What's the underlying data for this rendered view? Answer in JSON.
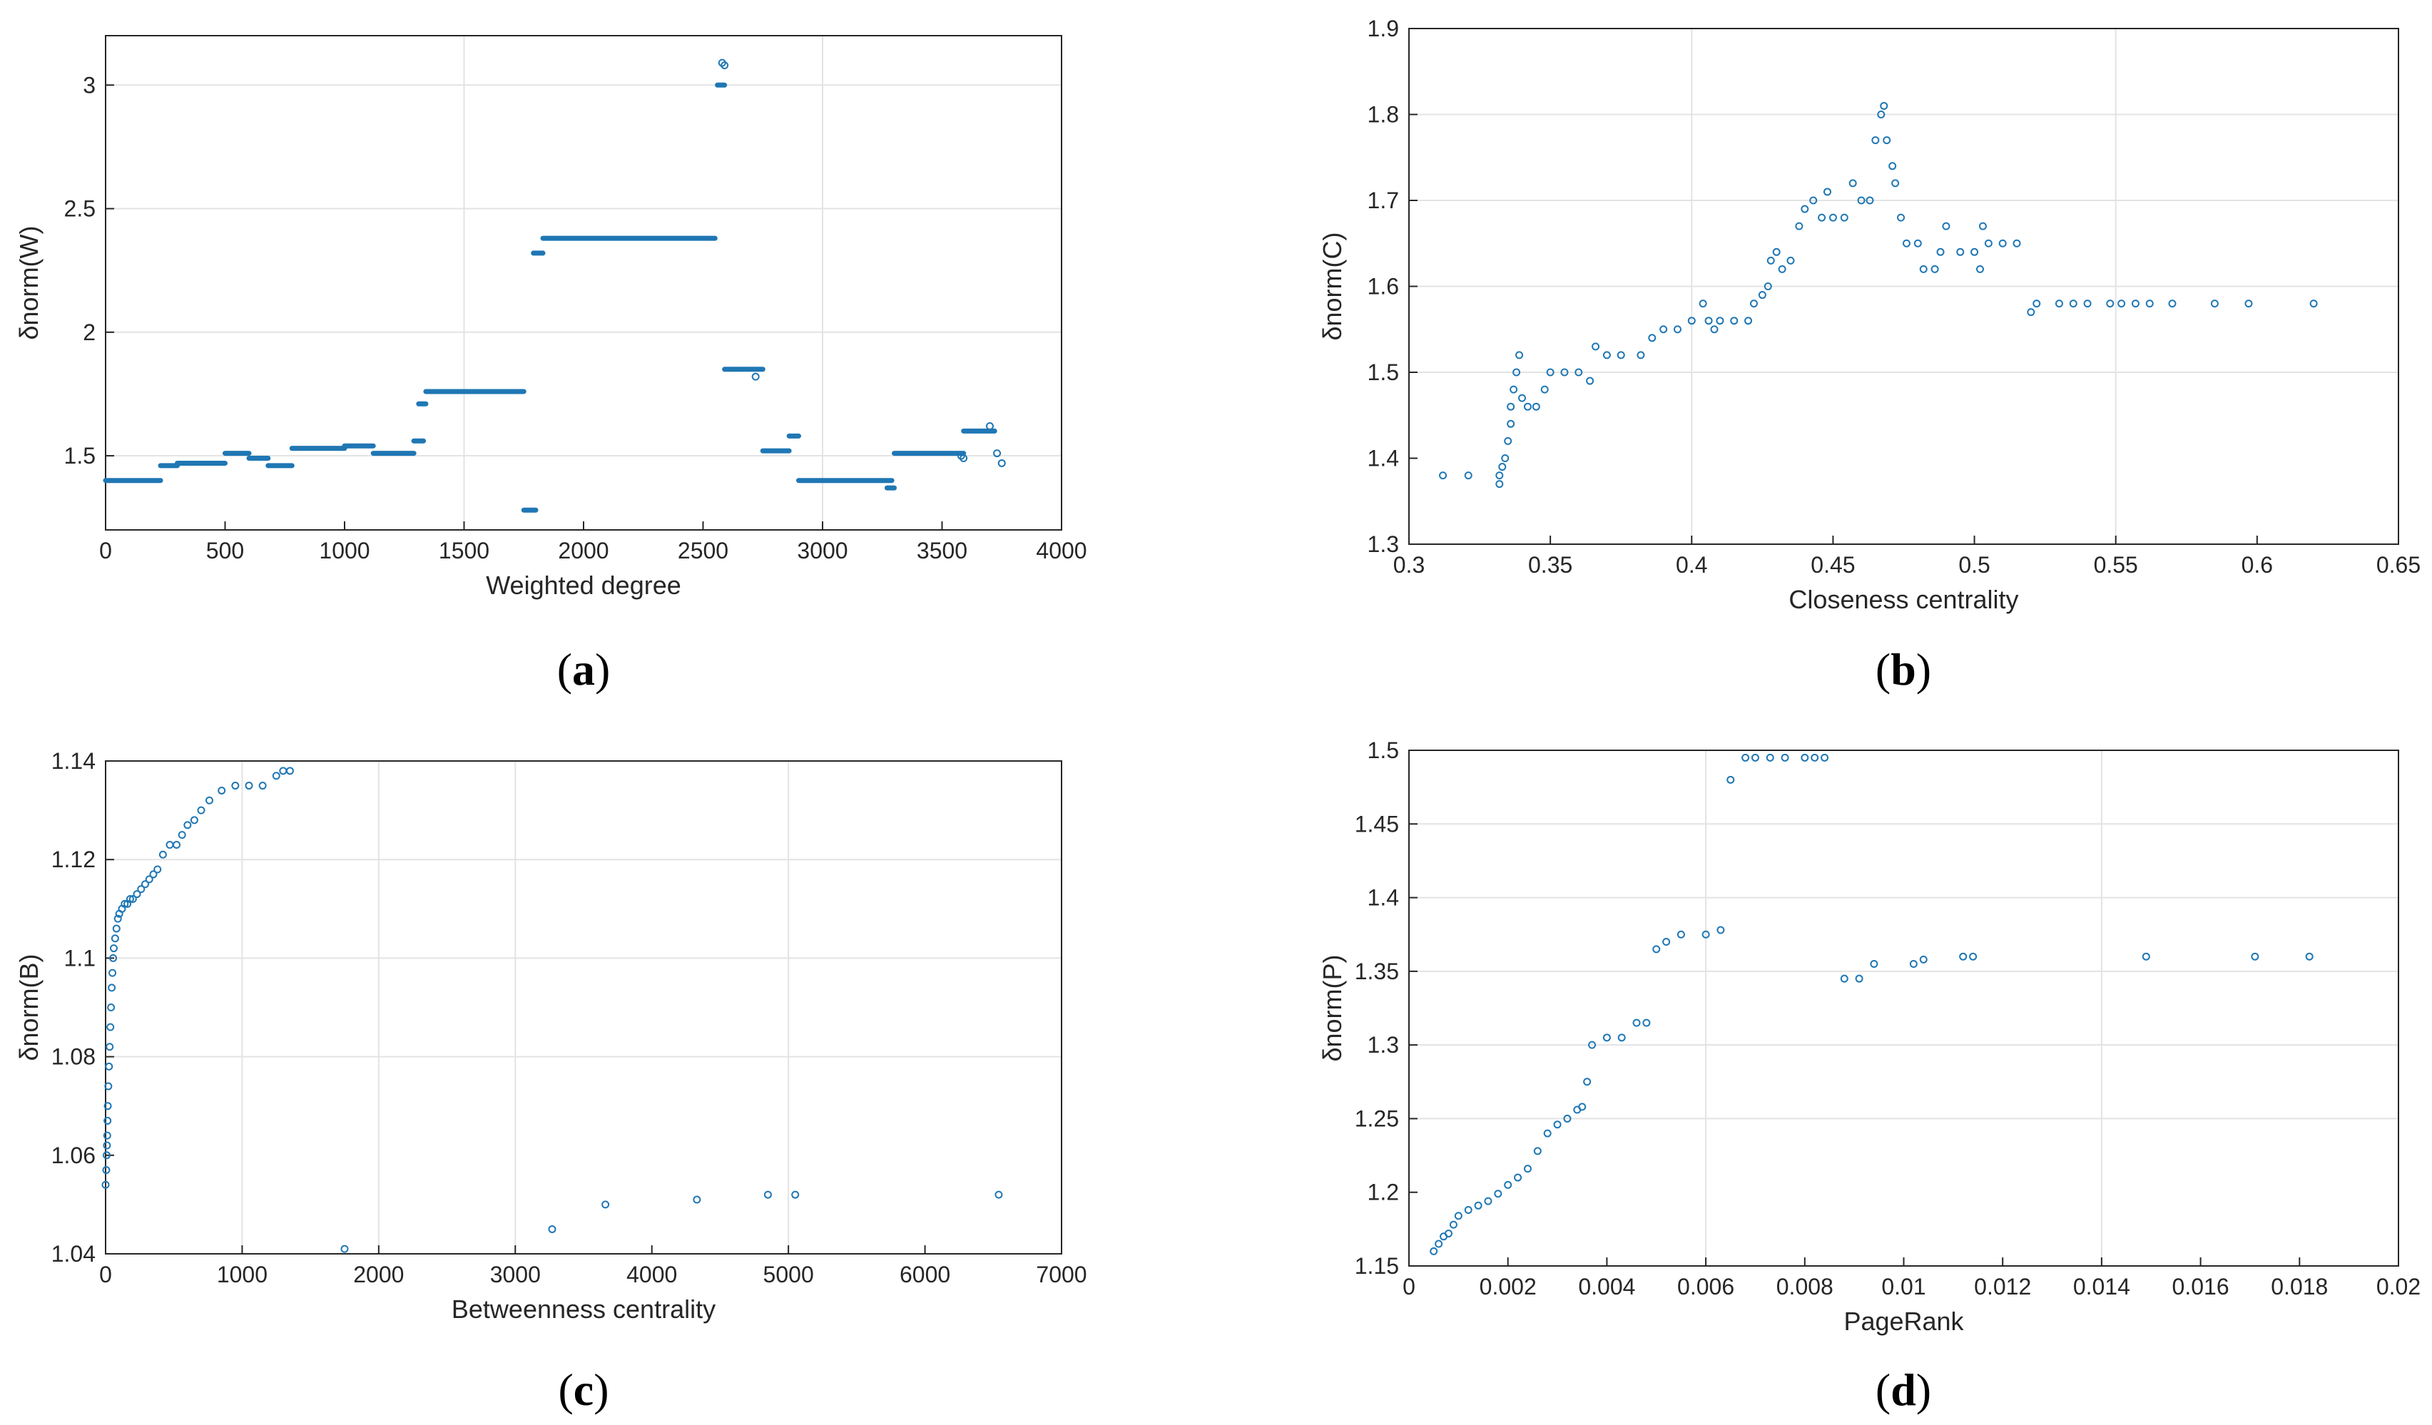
{
  "chart_data": [
    {
      "type": "scatter",
      "caption_letter": "a",
      "xlabel": "Weighted degree",
      "ylabel": "δnorm(W)",
      "xlim": [
        0,
        4000
      ],
      "ylim": [
        1.2,
        3.2
      ],
      "xticks": [
        0,
        500,
        1000,
        1500,
        2000,
        2500,
        3000,
        3500,
        4000
      ],
      "yticks": [
        1.5,
        2,
        2.5,
        3
      ],
      "xgrid": [
        1500,
        3000
      ],
      "ygrid": [
        1.5,
        2,
        2.5,
        3
      ],
      "marker_color": "#1f77b4",
      "segments": [
        {
          "x0": 0,
          "x1": 230,
          "y": 1.4
        },
        {
          "x0": 230,
          "x1": 300,
          "y": 1.46
        },
        {
          "x0": 300,
          "x1": 500,
          "y": 1.47
        },
        {
          "x0": 500,
          "x1": 600,
          "y": 1.51
        },
        {
          "x0": 600,
          "x1": 680,
          "y": 1.49
        },
        {
          "x0": 680,
          "x1": 780,
          "y": 1.46
        },
        {
          "x0": 780,
          "x1": 1000,
          "y": 1.53
        },
        {
          "x0": 1000,
          "x1": 1120,
          "y": 1.54
        },
        {
          "x0": 1120,
          "x1": 1290,
          "y": 1.51
        },
        {
          "x0": 1290,
          "x1": 1330,
          "y": 1.56
        },
        {
          "x0": 1310,
          "x1": 1340,
          "y": 1.71
        },
        {
          "x0": 1340,
          "x1": 1750,
          "y": 1.76
        },
        {
          "x0": 1750,
          "x1": 1800,
          "y": 1.28
        },
        {
          "x0": 1790,
          "x1": 1830,
          "y": 2.32
        },
        {
          "x0": 1830,
          "x1": 2550,
          "y": 2.38
        },
        {
          "x0": 2560,
          "x1": 2590,
          "y": 3.0
        },
        {
          "x0": 2590,
          "x1": 2750,
          "y": 1.85
        },
        {
          "x0": 2750,
          "x1": 2860,
          "y": 1.52
        },
        {
          "x0": 2860,
          "x1": 2900,
          "y": 1.58
        },
        {
          "x0": 2900,
          "x1": 3290,
          "y": 1.4
        },
        {
          "x0": 3270,
          "x1": 3300,
          "y": 1.37
        },
        {
          "x0": 3300,
          "x1": 3590,
          "y": 1.51
        },
        {
          "x0": 3590,
          "x1": 3720,
          "y": 1.6
        }
      ],
      "points": [
        [
          2580,
          3.09
        ],
        [
          2590,
          3.08
        ],
        [
          2720,
          1.82
        ],
        [
          3730,
          1.51
        ],
        [
          3750,
          1.47
        ],
        [
          3700,
          1.62
        ],
        [
          3580,
          1.5
        ],
        [
          3590,
          1.49
        ]
      ]
    },
    {
      "type": "scatter",
      "caption_letter": "b",
      "xlabel": "Closeness centrality",
      "ylabel": "δnorm(C)",
      "xlim": [
        0.3,
        0.65
      ],
      "ylim": [
        1.3,
        1.9
      ],
      "xticks": [
        0.3,
        0.35,
        0.4,
        0.45,
        0.5,
        0.55,
        0.6,
        0.65
      ],
      "yticks": [
        1.3,
        1.4,
        1.5,
        1.6,
        1.7,
        1.8,
        1.9
      ],
      "xgrid": [
        0.4,
        0.55
      ],
      "ygrid": [
        1.5,
        1.6,
        1.7,
        1.8
      ],
      "marker_color": "#1f77b4",
      "points": [
        [
          0.312,
          1.38
        ],
        [
          0.321,
          1.38
        ],
        [
          0.332,
          1.37
        ],
        [
          0.332,
          1.38
        ],
        [
          0.333,
          1.39
        ],
        [
          0.334,
          1.4
        ],
        [
          0.335,
          1.42
        ],
        [
          0.336,
          1.44
        ],
        [
          0.336,
          1.46
        ],
        [
          0.337,
          1.48
        ],
        [
          0.338,
          1.5
        ],
        [
          0.339,
          1.52
        ],
        [
          0.34,
          1.47
        ],
        [
          0.342,
          1.46
        ],
        [
          0.345,
          1.46
        ],
        [
          0.348,
          1.48
        ],
        [
          0.35,
          1.5
        ],
        [
          0.355,
          1.5
        ],
        [
          0.36,
          1.5
        ],
        [
          0.364,
          1.49
        ],
        [
          0.366,
          1.53
        ],
        [
          0.37,
          1.52
        ],
        [
          0.375,
          1.52
        ],
        [
          0.382,
          1.52
        ],
        [
          0.386,
          1.54
        ],
        [
          0.39,
          1.55
        ],
        [
          0.395,
          1.55
        ],
        [
          0.4,
          1.56
        ],
        [
          0.404,
          1.58
        ],
        [
          0.406,
          1.56
        ],
        [
          0.408,
          1.55
        ],
        [
          0.41,
          1.56
        ],
        [
          0.415,
          1.56
        ],
        [
          0.42,
          1.56
        ],
        [
          0.422,
          1.58
        ],
        [
          0.425,
          1.59
        ],
        [
          0.427,
          1.6
        ],
        [
          0.428,
          1.63
        ],
        [
          0.43,
          1.64
        ],
        [
          0.432,
          1.62
        ],
        [
          0.435,
          1.63
        ],
        [
          0.438,
          1.67
        ],
        [
          0.44,
          1.69
        ],
        [
          0.443,
          1.7
        ],
        [
          0.446,
          1.68
        ],
        [
          0.448,
          1.71
        ],
        [
          0.45,
          1.68
        ],
        [
          0.454,
          1.68
        ],
        [
          0.457,
          1.72
        ],
        [
          0.46,
          1.7
        ],
        [
          0.463,
          1.7
        ],
        [
          0.465,
          1.77
        ],
        [
          0.467,
          1.8
        ],
        [
          0.468,
          1.81
        ],
        [
          0.469,
          1.77
        ],
        [
          0.471,
          1.74
        ],
        [
          0.472,
          1.72
        ],
        [
          0.474,
          1.68
        ],
        [
          0.476,
          1.65
        ],
        [
          0.48,
          1.65
        ],
        [
          0.482,
          1.62
        ],
        [
          0.486,
          1.62
        ],
        [
          0.488,
          1.64
        ],
        [
          0.49,
          1.67
        ],
        [
          0.495,
          1.64
        ],
        [
          0.5,
          1.64
        ],
        [
          0.502,
          1.62
        ],
        [
          0.503,
          1.67
        ],
        [
          0.505,
          1.65
        ],
        [
          0.51,
          1.65
        ],
        [
          0.515,
          1.65
        ],
        [
          0.52,
          1.57
        ],
        [
          0.522,
          1.58
        ],
        [
          0.53,
          1.58
        ],
        [
          0.535,
          1.58
        ],
        [
          0.54,
          1.58
        ],
        [
          0.548,
          1.58
        ],
        [
          0.552,
          1.58
        ],
        [
          0.557,
          1.58
        ],
        [
          0.562,
          1.58
        ],
        [
          0.57,
          1.58
        ],
        [
          0.585,
          1.58
        ],
        [
          0.597,
          1.58
        ],
        [
          0.62,
          1.58
        ]
      ]
    },
    {
      "type": "scatter",
      "caption_letter": "c",
      "xlabel": "Betweenness centrality",
      "ylabel": "δnorm(B)",
      "xlim": [
        0,
        7000
      ],
      "ylim": [
        1.04,
        1.14
      ],
      "xticks": [
        0,
        1000,
        2000,
        3000,
        4000,
        5000,
        6000,
        7000
      ],
      "yticks": [
        1.04,
        1.06,
        1.08,
        1.1,
        1.12,
        1.14
      ],
      "xgrid": [
        1000,
        2000,
        3000,
        5000
      ],
      "ygrid": [
        1.08,
        1.1,
        1.12
      ],
      "marker_color": "#1f77b4",
      "points": [
        [
          0,
          1.054
        ],
        [
          5,
          1.057
        ],
        [
          8,
          1.06
        ],
        [
          10,
          1.062
        ],
        [
          12,
          1.064
        ],
        [
          14,
          1.067
        ],
        [
          16,
          1.07
        ],
        [
          20,
          1.074
        ],
        [
          25,
          1.078
        ],
        [
          30,
          1.082
        ],
        [
          35,
          1.086
        ],
        [
          40,
          1.09
        ],
        [
          45,
          1.094
        ],
        [
          50,
          1.097
        ],
        [
          55,
          1.1
        ],
        [
          60,
          1.102
        ],
        [
          70,
          1.104
        ],
        [
          80,
          1.106
        ],
        [
          90,
          1.108
        ],
        [
          100,
          1.109
        ],
        [
          120,
          1.11
        ],
        [
          140,
          1.111
        ],
        [
          160,
          1.111
        ],
        [
          180,
          1.112
        ],
        [
          200,
          1.112
        ],
        [
          230,
          1.113
        ],
        [
          260,
          1.114
        ],
        [
          290,
          1.115
        ],
        [
          320,
          1.116
        ],
        [
          350,
          1.117
        ],
        [
          380,
          1.118
        ],
        [
          420,
          1.121
        ],
        [
          470,
          1.123
        ],
        [
          520,
          1.123
        ],
        [
          560,
          1.125
        ],
        [
          600,
          1.127
        ],
        [
          650,
          1.128
        ],
        [
          700,
          1.13
        ],
        [
          760,
          1.132
        ],
        [
          850,
          1.134
        ],
        [
          950,
          1.135
        ],
        [
          1050,
          1.135
        ],
        [
          1150,
          1.135
        ],
        [
          1250,
          1.137
        ],
        [
          1300,
          1.138
        ],
        [
          1350,
          1.138
        ],
        [
          1750,
          1.041
        ],
        [
          3270,
          1.045
        ],
        [
          3660,
          1.05
        ],
        [
          4330,
          1.051
        ],
        [
          4850,
          1.052
        ],
        [
          5050,
          1.052
        ],
        [
          6540,
          1.052
        ]
      ]
    },
    {
      "type": "scatter",
      "caption_letter": "d",
      "xlabel": "PageRank",
      "ylabel": "δnorm(P)",
      "xlim": [
        0,
        0.02
      ],
      "ylim": [
        1.15,
        1.5
      ],
      "xticks": [
        0,
        0.002,
        0.004,
        0.006,
        0.008,
        0.01,
        0.012,
        0.014,
        0.016,
        0.018,
        0.02
      ],
      "yticks": [
        1.15,
        1.2,
        1.25,
        1.3,
        1.35,
        1.4,
        1.45,
        1.5
      ],
      "xgrid": [
        0.006,
        0.014
      ],
      "ygrid": [
        1.25,
        1.3,
        1.35,
        1.4,
        1.45
      ],
      "marker_color": "#1f77b4",
      "points": [
        [
          0.0005,
          1.16
        ],
        [
          0.0006,
          1.165
        ],
        [
          0.0007,
          1.17
        ],
        [
          0.0008,
          1.172
        ],
        [
          0.0009,
          1.178
        ],
        [
          0.001,
          1.184
        ],
        [
          0.0012,
          1.188
        ],
        [
          0.0014,
          1.191
        ],
        [
          0.0016,
          1.194
        ],
        [
          0.0018,
          1.199
        ],
        [
          0.002,
          1.205
        ],
        [
          0.0022,
          1.21
        ],
        [
          0.0024,
          1.216
        ],
        [
          0.0026,
          1.228
        ],
        [
          0.0028,
          1.24
        ],
        [
          0.003,
          1.246
        ],
        [
          0.0032,
          1.25
        ],
        [
          0.0034,
          1.256
        ],
        [
          0.0035,
          1.258
        ],
        [
          0.0036,
          1.275
        ],
        [
          0.0037,
          1.3
        ],
        [
          0.004,
          1.305
        ],
        [
          0.0043,
          1.305
        ],
        [
          0.0046,
          1.315
        ],
        [
          0.0048,
          1.315
        ],
        [
          0.005,
          1.365
        ],
        [
          0.0052,
          1.37
        ],
        [
          0.0055,
          1.375
        ],
        [
          0.006,
          1.375
        ],
        [
          0.0063,
          1.378
        ],
        [
          0.0065,
          1.48
        ],
        [
          0.0068,
          1.495
        ],
        [
          0.007,
          1.495
        ],
        [
          0.0073,
          1.495
        ],
        [
          0.0076,
          1.495
        ],
        [
          0.008,
          1.495
        ],
        [
          0.0082,
          1.495
        ],
        [
          0.0084,
          1.495
        ],
        [
          0.0088,
          1.345
        ],
        [
          0.0091,
          1.345
        ],
        [
          0.0094,
          1.355
        ],
        [
          0.0102,
          1.355
        ],
        [
          0.0104,
          1.358
        ],
        [
          0.0112,
          1.36
        ],
        [
          0.0114,
          1.36
        ],
        [
          0.0149,
          1.36
        ],
        [
          0.0171,
          1.36
        ],
        [
          0.0182,
          1.36
        ]
      ]
    }
  ]
}
